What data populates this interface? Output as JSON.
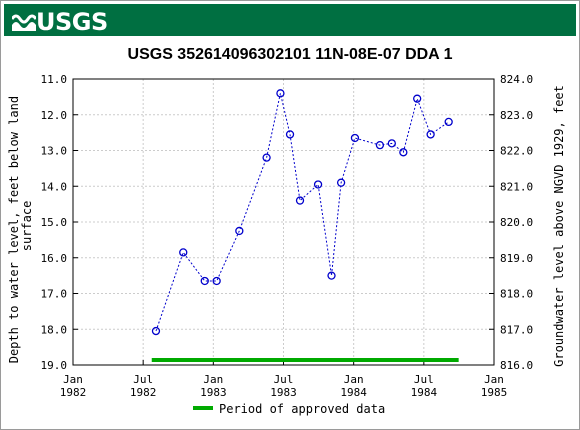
{
  "header": {
    "logo_text": "USGS"
  },
  "colors": {
    "banner": "#006f41",
    "series": "#0000cc",
    "approved": "#00aa00"
  },
  "chart_data": {
    "type": "scatter",
    "title": "USGS 352614096302101 11N-08E-07 DDA 1",
    "ylabel_left_lines": [
      "Depth to water level, feet below land",
      "surface"
    ],
    "ylabel_right": "Groundwater level above NGVD 1929, feet",
    "ylim_left": [
      11.0,
      19.0
    ],
    "ylim_right": [
      816.0,
      824.0
    ],
    "left_inverted": true,
    "grid": true,
    "yticks_left": [
      "11.0",
      "12.0",
      "13.0",
      "14.0",
      "15.0",
      "16.0",
      "17.0",
      "18.0",
      "19.0"
    ],
    "yticks_right": [
      "824.0",
      "823.0",
      "822.0",
      "821.0",
      "820.0",
      "819.0",
      "818.0",
      "817.0",
      "816.0"
    ],
    "xticks": [
      {
        "month": "Jan",
        "year": "1982"
      },
      {
        "month": "Jul",
        "year": "1982"
      },
      {
        "month": "Jan",
        "year": "1983"
      },
      {
        "month": "Jul",
        "year": "1983"
      },
      {
        "month": "Jan",
        "year": "1984"
      },
      {
        "month": "Jul",
        "year": "1984"
      },
      {
        "month": "Jan",
        "year": "1985"
      }
    ],
    "x_range": [
      "1982-01-01",
      "1985-01-01"
    ],
    "series": [
      {
        "points": [
          {
            "date": "1982-08-05",
            "depth": 18.05
          },
          {
            "date": "1982-10-15",
            "depth": 15.85
          },
          {
            "date": "1982-12-10",
            "depth": 16.65
          },
          {
            "date": "1983-01-10",
            "depth": 16.65
          },
          {
            "date": "1983-03-10",
            "depth": 15.25
          },
          {
            "date": "1983-05-20",
            "depth": 13.2
          },
          {
            "date": "1983-06-25",
            "depth": 11.4
          },
          {
            "date": "1983-07-20",
            "depth": 12.55
          },
          {
            "date": "1983-08-15",
            "depth": 14.4
          },
          {
            "date": "1983-10-01",
            "depth": 13.95
          },
          {
            "date": "1983-11-05",
            "depth": 16.5
          },
          {
            "date": "1983-11-30",
            "depth": 13.9
          },
          {
            "date": "1984-01-05",
            "depth": 12.65
          },
          {
            "date": "1984-03-10",
            "depth": 12.85
          },
          {
            "date": "1984-04-10",
            "depth": 12.8
          },
          {
            "date": "1984-05-10",
            "depth": 13.05
          },
          {
            "date": "1984-06-15",
            "depth": 11.55
          },
          {
            "date": "1984-07-20",
            "depth": 12.55
          },
          {
            "date": "1984-09-05",
            "depth": 12.2
          }
        ]
      }
    ],
    "approved_period": {
      "start": "1982-07-25",
      "end": "1984-10-01"
    },
    "legend": {
      "label": "Period of approved data",
      "position": "bottom"
    }
  }
}
